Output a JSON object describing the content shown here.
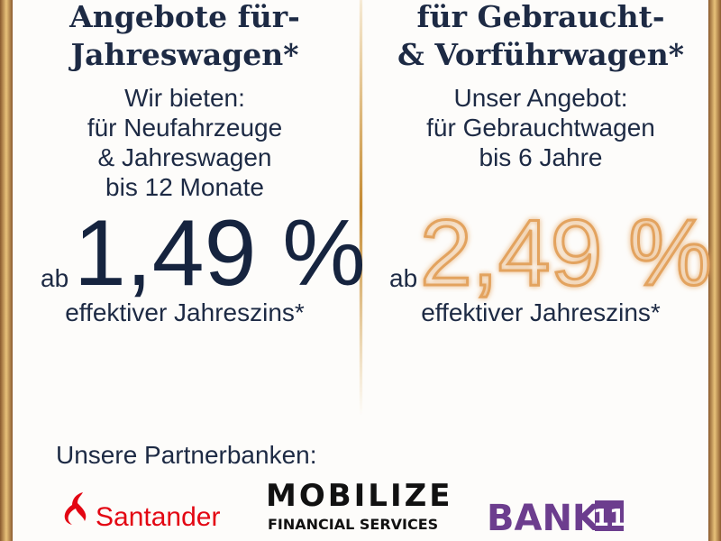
{
  "left": {
    "title": [
      "Angebote für-",
      "Jahreswagen*"
    ],
    "lines": [
      "Wir bieten:",
      "für Neufahrzeuge",
      "& Jahreswagen",
      "bis 12 Monate"
    ],
    "prefix": "ab",
    "rate": "1,49 %",
    "note": "effektiver Jahreszins*"
  },
  "right": {
    "title": [
      "für Gebraucht-",
      "& Vorführwagen*"
    ],
    "lines": [
      "Unser Angebot:",
      "für Gebrauchtwagen",
      "bis 6 Jahre"
    ],
    "prefix": "ab",
    "rate": "2,49 %",
    "note": "effektiver Jahreszins*"
  },
  "partners": {
    "heading": "Unsere Partnerbanken:",
    "banks": [
      {
        "name": "Santander"
      },
      {
        "name": "MOBILIZE",
        "subtitle": "FINANCIAL SERVICES"
      },
      {
        "name": "BANK",
        "badge": "11"
      }
    ]
  }
}
